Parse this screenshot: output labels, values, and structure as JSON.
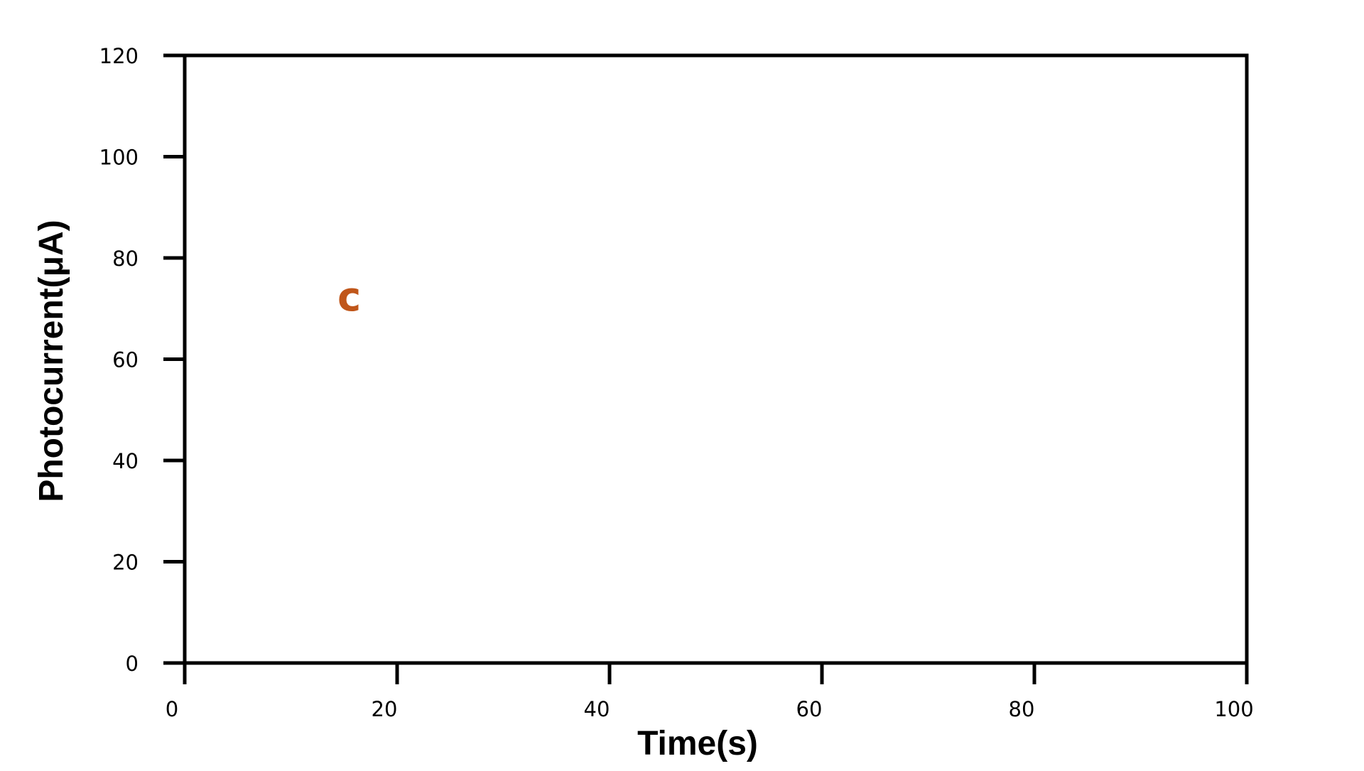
{
  "chart_data": {
    "type": "line",
    "panel_label": "c",
    "xlabel": "Time(s)",
    "ylabel": "Photocurrent(μA)",
    "xlim": [
      0,
      100
    ],
    "ylim": [
      0,
      120
    ],
    "x_ticks": [
      0,
      20,
      40,
      60,
      80,
      100
    ],
    "y_ticks": [
      0,
      20,
      40,
      60,
      80,
      100,
      120
    ],
    "series": [],
    "grid": false,
    "legend": "none",
    "colors": {
      "axes": "#000000",
      "panel_label": "#C0561A",
      "background": "#ffffff"
    }
  }
}
